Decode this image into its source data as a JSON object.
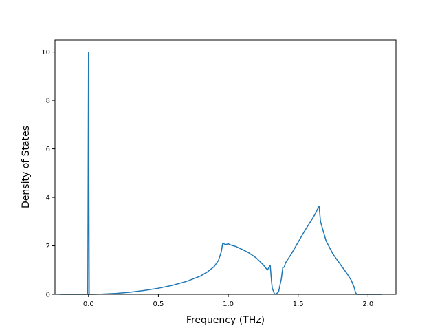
{
  "chart_data": {
    "type": "line",
    "title": "",
    "xlabel": "Frequency (THz)",
    "ylabel": "Density of States",
    "xlim": [
      -0.24,
      2.2
    ],
    "ylim": [
      0,
      10.5
    ],
    "xticks": [
      0.0,
      0.5,
      1.0,
      1.5,
      2.0
    ],
    "xtick_labels": [
      "0.0",
      "0.5",
      "1.0",
      "1.5",
      "2.0"
    ],
    "yticks": [
      0,
      2,
      4,
      6,
      8,
      10
    ],
    "ytick_labels": [
      "0",
      "2",
      "4",
      "6",
      "8",
      "10"
    ],
    "grid": false,
    "legend": "none",
    "series": [
      {
        "color": "#1f77b4",
        "x": [
          -0.2,
          -0.02,
          -0.005,
          0.0,
          0.005,
          0.02,
          0.1,
          0.2,
          0.3,
          0.4,
          0.5,
          0.6,
          0.7,
          0.8,
          0.85,
          0.9,
          0.93,
          0.95,
          0.96,
          0.97,
          0.98,
          1.0,
          1.02,
          1.05,
          1.1,
          1.15,
          1.2,
          1.25,
          1.28,
          1.3,
          1.31,
          1.315,
          1.33,
          1.34,
          1.36,
          1.38,
          1.39,
          1.4,
          1.41,
          1.45,
          1.5,
          1.55,
          1.6,
          1.63,
          1.645,
          1.65,
          1.66,
          1.7,
          1.75,
          1.8,
          1.85,
          1.88,
          1.9,
          1.91,
          1.92,
          1.95,
          2.0,
          2.1
        ],
        "y": [
          0,
          0,
          0,
          10.0,
          0,
          0,
          0.01,
          0.04,
          0.09,
          0.16,
          0.25,
          0.37,
          0.53,
          0.75,
          0.92,
          1.15,
          1.4,
          1.75,
          2.1,
          2.08,
          2.05,
          2.08,
          2.03,
          1.98,
          1.85,
          1.7,
          1.5,
          1.22,
          1.0,
          1.2,
          0.5,
          0.25,
          0.03,
          0.0,
          0.1,
          0.65,
          1.1,
          1.12,
          1.3,
          1.65,
          2.15,
          2.65,
          3.1,
          3.4,
          3.6,
          3.62,
          3.0,
          2.2,
          1.65,
          1.25,
          0.85,
          0.58,
          0.3,
          0.08,
          0.0,
          0.0,
          0.0,
          0.0
        ]
      }
    ]
  }
}
